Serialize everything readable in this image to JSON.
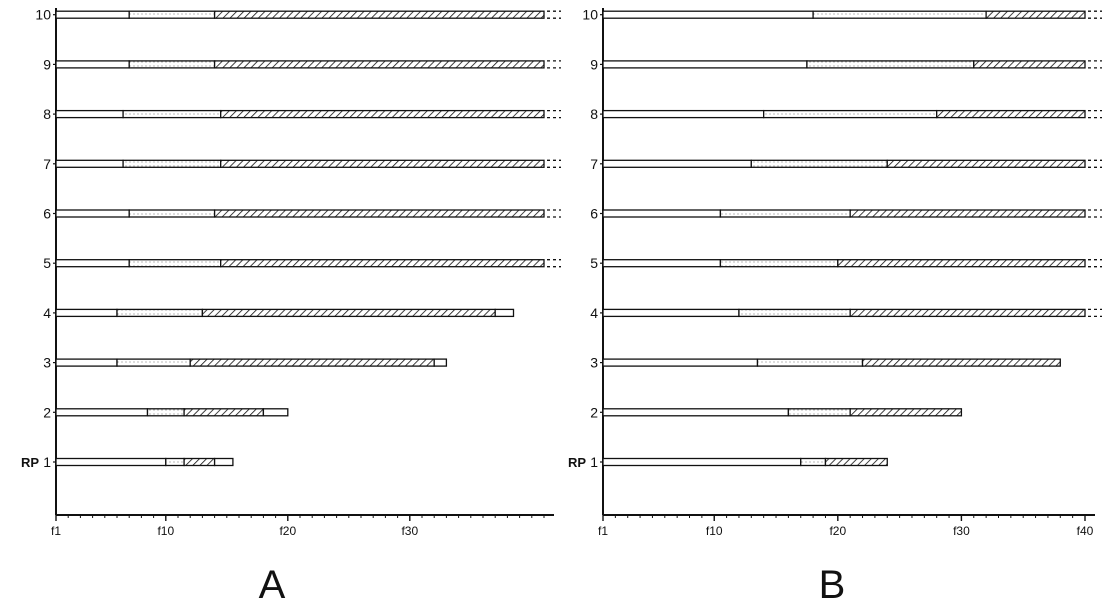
{
  "chart_data": [
    {
      "type": "bar",
      "panel_label": "A",
      "x_tick_labels": [
        "f1",
        "f10",
        "f20",
        "f30"
      ],
      "x_ticks": [
        1,
        10,
        20,
        30
      ],
      "xlim": [
        1,
        41
      ],
      "rows": [
        {
          "label": "1",
          "prefix": "RP",
          "segments": [
            {
              "start": 1,
              "end": 10,
              "fill": "open"
            },
            {
              "start": 10,
              "end": 11.5,
              "fill": "dotted"
            },
            {
              "start": 11.5,
              "end": 14,
              "fill": "hatched"
            },
            {
              "start": 14,
              "end": 15.5,
              "fill": "open"
            }
          ]
        },
        {
          "label": "2",
          "segments": [
            {
              "start": 1,
              "end": 8.5,
              "fill": "open"
            },
            {
              "start": 8.5,
              "end": 11.5,
              "fill": "dotted"
            },
            {
              "start": 11.5,
              "end": 18,
              "fill": "hatched"
            },
            {
              "start": 18,
              "end": 20,
              "fill": "open"
            }
          ]
        },
        {
          "label": "3",
          "segments": [
            {
              "start": 1,
              "end": 6,
              "fill": "open"
            },
            {
              "start": 6,
              "end": 12,
              "fill": "dotted"
            },
            {
              "start": 12,
              "end": 32,
              "fill": "hatched"
            },
            {
              "start": 32,
              "end": 33,
              "fill": "open"
            }
          ]
        },
        {
          "label": "4",
          "segments": [
            {
              "start": 1,
              "end": 6,
              "fill": "open"
            },
            {
              "start": 6,
              "end": 13,
              "fill": "dotted"
            },
            {
              "start": 13,
              "end": 37,
              "fill": "hatched"
            },
            {
              "start": 37,
              "end": 38.5,
              "fill": "open"
            }
          ]
        },
        {
          "label": "5",
          "continues": true,
          "segments": [
            {
              "start": 1,
              "end": 7,
              "fill": "open"
            },
            {
              "start": 7,
              "end": 14.5,
              "fill": "dotted"
            },
            {
              "start": 14.5,
              "end": 41,
              "fill": "hatched"
            }
          ]
        },
        {
          "label": "6",
          "continues": true,
          "segments": [
            {
              "start": 1,
              "end": 7,
              "fill": "open"
            },
            {
              "start": 7,
              "end": 14,
              "fill": "dotted"
            },
            {
              "start": 14,
              "end": 41,
              "fill": "hatched"
            }
          ]
        },
        {
          "label": "7",
          "continues": true,
          "segments": [
            {
              "start": 1,
              "end": 6.5,
              "fill": "open"
            },
            {
              "start": 6.5,
              "end": 14.5,
              "fill": "dotted"
            },
            {
              "start": 14.5,
              "end": 41,
              "fill": "hatched"
            }
          ]
        },
        {
          "label": "8",
          "continues": true,
          "segments": [
            {
              "start": 1,
              "end": 6.5,
              "fill": "open"
            },
            {
              "start": 6.5,
              "end": 14.5,
              "fill": "dotted"
            },
            {
              "start": 14.5,
              "end": 41,
              "fill": "hatched"
            }
          ]
        },
        {
          "label": "9",
          "continues": true,
          "segments": [
            {
              "start": 1,
              "end": 7,
              "fill": "open"
            },
            {
              "start": 7,
              "end": 14,
              "fill": "dotted"
            },
            {
              "start": 14,
              "end": 41,
              "fill": "hatched"
            }
          ]
        },
        {
          "label": "10",
          "continues": true,
          "segments": [
            {
              "start": 1,
              "end": 7,
              "fill": "open"
            },
            {
              "start": 7,
              "end": 14,
              "fill": "dotted"
            },
            {
              "start": 14,
              "end": 41,
              "fill": "hatched"
            }
          ]
        }
      ]
    },
    {
      "type": "bar",
      "panel_label": "B",
      "x_tick_labels": [
        "f1",
        "f10",
        "f20",
        "f30",
        "f40"
      ],
      "x_ticks": [
        1,
        10,
        20,
        30,
        40
      ],
      "xlim": [
        1,
        40
      ],
      "rows": [
        {
          "label": "1",
          "prefix": "RP",
          "segments": [
            {
              "start": 1,
              "end": 17,
              "fill": "open"
            },
            {
              "start": 17,
              "end": 19,
              "fill": "dotted"
            },
            {
              "start": 19,
              "end": 24,
              "fill": "hatched"
            }
          ]
        },
        {
          "label": "2",
          "segments": [
            {
              "start": 1,
              "end": 16,
              "fill": "open"
            },
            {
              "start": 16,
              "end": 21,
              "fill": "dotted"
            },
            {
              "start": 21,
              "end": 30,
              "fill": "hatched"
            }
          ]
        },
        {
          "label": "3",
          "segments": [
            {
              "start": 1,
              "end": 13.5,
              "fill": "open"
            },
            {
              "start": 13.5,
              "end": 22,
              "fill": "dotted"
            },
            {
              "start": 22,
              "end": 38,
              "fill": "hatched"
            }
          ]
        },
        {
          "label": "4",
          "continues": true,
          "segments": [
            {
              "start": 1,
              "end": 12,
              "fill": "open"
            },
            {
              "start": 12,
              "end": 21,
              "fill": "dotted"
            },
            {
              "start": 21,
              "end": 40,
              "fill": "hatched"
            }
          ]
        },
        {
          "label": "5",
          "continues": true,
          "segments": [
            {
              "start": 1,
              "end": 10.5,
              "fill": "open"
            },
            {
              "start": 10.5,
              "end": 20,
              "fill": "dotted"
            },
            {
              "start": 20,
              "end": 40,
              "fill": "hatched"
            }
          ]
        },
        {
          "label": "6",
          "continues": true,
          "segments": [
            {
              "start": 1,
              "end": 10.5,
              "fill": "open"
            },
            {
              "start": 10.5,
              "end": 21,
              "fill": "dotted"
            },
            {
              "start": 21,
              "end": 40,
              "fill": "hatched"
            }
          ]
        },
        {
          "label": "7",
          "continues": true,
          "segments": [
            {
              "start": 1,
              "end": 13,
              "fill": "open"
            },
            {
              "start": 13,
              "end": 24,
              "fill": "dotted"
            },
            {
              "start": 24,
              "end": 40,
              "fill": "hatched"
            }
          ]
        },
        {
          "label": "8",
          "continues": true,
          "segments": [
            {
              "start": 1,
              "end": 14,
              "fill": "open"
            },
            {
              "start": 14,
              "end": 28,
              "fill": "dotted"
            },
            {
              "start": 28,
              "end": 40,
              "fill": "hatched"
            }
          ]
        },
        {
          "label": "9",
          "continues": true,
          "segments": [
            {
              "start": 1,
              "end": 17.5,
              "fill": "open"
            },
            {
              "start": 17.5,
              "end": 31,
              "fill": "dotted"
            },
            {
              "start": 31,
              "end": 40,
              "fill": "hatched"
            }
          ]
        },
        {
          "label": "10",
          "continues": true,
          "segments": [
            {
              "start": 1,
              "end": 18,
              "fill": "open"
            },
            {
              "start": 18,
              "end": 32,
              "fill": "dotted"
            },
            {
              "start": 32,
              "end": 40,
              "fill": "hatched"
            }
          ]
        }
      ]
    }
  ]
}
